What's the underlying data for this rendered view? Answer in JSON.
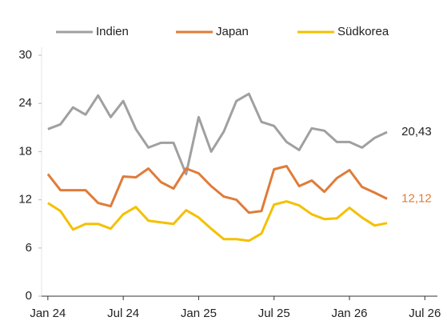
{
  "chart_data": {
    "type": "line",
    "x": [
      0,
      1,
      2,
      3,
      4,
      5,
      6,
      7,
      8,
      9,
      10,
      11,
      12,
      13,
      14,
      15,
      16,
      17,
      18,
      19,
      20,
      21,
      22,
      23,
      24,
      25,
      26,
      27
    ],
    "xlim": [
      -0.5,
      31
    ],
    "xticks": [
      {
        "value": 0,
        "label": "Jan 24"
      },
      {
        "value": 6,
        "label": "Jul 24"
      },
      {
        "value": 12,
        "label": "Jan 25"
      },
      {
        "value": 18,
        "label": "Jul 25"
      },
      {
        "value": 24,
        "label": "Jan 26"
      },
      {
        "value": 30,
        "label": "Jul 26"
      }
    ],
    "ylim": [
      0,
      30
    ],
    "yticks": [
      0,
      6,
      12,
      18,
      24,
      30
    ],
    "legend": "top",
    "series": [
      {
        "name": "Indien",
        "color": "#a0a0a0",
        "label_color": "#222222",
        "end_label": "20,43",
        "values": [
          20.8,
          21.4,
          23.5,
          22.6,
          25.0,
          22.3,
          24.3,
          20.8,
          18.5,
          19.1,
          19.1,
          15.2,
          22.3,
          18.0,
          20.5,
          24.3,
          25.2,
          21.7,
          21.2,
          19.2,
          18.2,
          20.9,
          20.6,
          19.2,
          19.2,
          18.5,
          19.7,
          20.43
        ]
      },
      {
        "name": "Japan",
        "color": "#e07b39",
        "label_color": "#e07b39",
        "end_label": "12,12",
        "values": [
          15.2,
          13.2,
          13.2,
          13.2,
          11.6,
          11.2,
          14.9,
          14.8,
          15.9,
          14.2,
          13.4,
          15.9,
          15.3,
          13.7,
          12.4,
          12.0,
          10.4,
          10.6,
          15.8,
          16.2,
          13.7,
          14.4,
          13.0,
          14.7,
          15.7,
          13.6,
          12.9,
          12.12
        ]
      },
      {
        "name": "Südkorea",
        "color": "#f5c000",
        "values": [
          11.6,
          10.6,
          8.3,
          9.0,
          9.0,
          8.4,
          10.2,
          11.1,
          9.4,
          9.2,
          9.0,
          10.7,
          9.8,
          8.4,
          7.1,
          7.1,
          6.9,
          7.8,
          11.4,
          11.8,
          11.3,
          10.2,
          9.6,
          9.7,
          11.0,
          9.8,
          8.8,
          9.1
        ]
      }
    ]
  }
}
